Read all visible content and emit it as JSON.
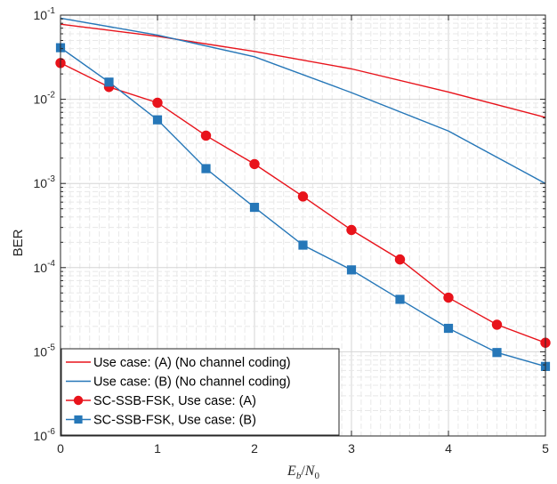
{
  "chart_data": {
    "type": "line",
    "title": "",
    "xlabel": "E_b/N_0",
    "xlabel_parts": {
      "main": "E",
      "sub1": "b",
      "slash": "/",
      "main2": "N",
      "sub2": "0"
    },
    "ylabel": "BER",
    "xlim": [
      0,
      5
    ],
    "ylim_log10": [
      -6,
      -1
    ],
    "yscale": "log",
    "grid": "major and minor, dashed",
    "legend_location": "bottom-left",
    "x_ticks": [
      "0",
      "1",
      "2",
      "3",
      "4",
      "5"
    ],
    "y_ticks": [
      {
        "base": "10",
        "exp": "-6"
      },
      {
        "base": "10",
        "exp": "-5"
      },
      {
        "base": "10",
        "exp": "-4"
      },
      {
        "base": "10",
        "exp": "-3"
      },
      {
        "base": "10",
        "exp": "-2"
      },
      {
        "base": "10",
        "exp": "-1"
      }
    ],
    "series": [
      {
        "name": "Use case: (A) (No channel coding)",
        "color": "#e8131b",
        "marker": "none",
        "x": [
          0,
          1,
          2,
          3,
          4,
          5
        ],
        "y": [
          0.078,
          0.056,
          0.037,
          0.023,
          0.0122,
          0.0061
        ]
      },
      {
        "name": "Use case: (B) (No channel coding)",
        "color": "#2677b8",
        "marker": "none",
        "x": [
          0,
          1,
          2,
          3,
          4,
          5
        ],
        "y": [
          0.092,
          0.058,
          0.032,
          0.012,
          0.0042,
          0.001
        ]
      },
      {
        "name": "SC-SSB-FSK, Use case: (A)",
        "color": "#e8131b",
        "marker": "circle",
        "x": [
          0,
          0.5,
          1,
          1.5,
          2,
          2.5,
          3,
          3.5,
          4,
          4.5,
          5
        ],
        "y": [
          0.027,
          0.014,
          0.0091,
          0.0037,
          0.0017,
          0.0007,
          0.00028,
          0.000125,
          4.4e-05,
          2.1e-05,
          1.28e-05
        ]
      },
      {
        "name": "SC-SSB-FSK, Use case: (B)",
        "color": "#2677b8",
        "marker": "square",
        "x": [
          0,
          0.5,
          1,
          1.5,
          2,
          2.5,
          3,
          3.5,
          4,
          4.5,
          5
        ],
        "y": [
          0.041,
          0.016,
          0.0057,
          0.0015,
          0.00052,
          0.000185,
          9.4e-05,
          4.2e-05,
          1.9e-05,
          9.8e-06,
          6.7e-06
        ]
      }
    ]
  }
}
